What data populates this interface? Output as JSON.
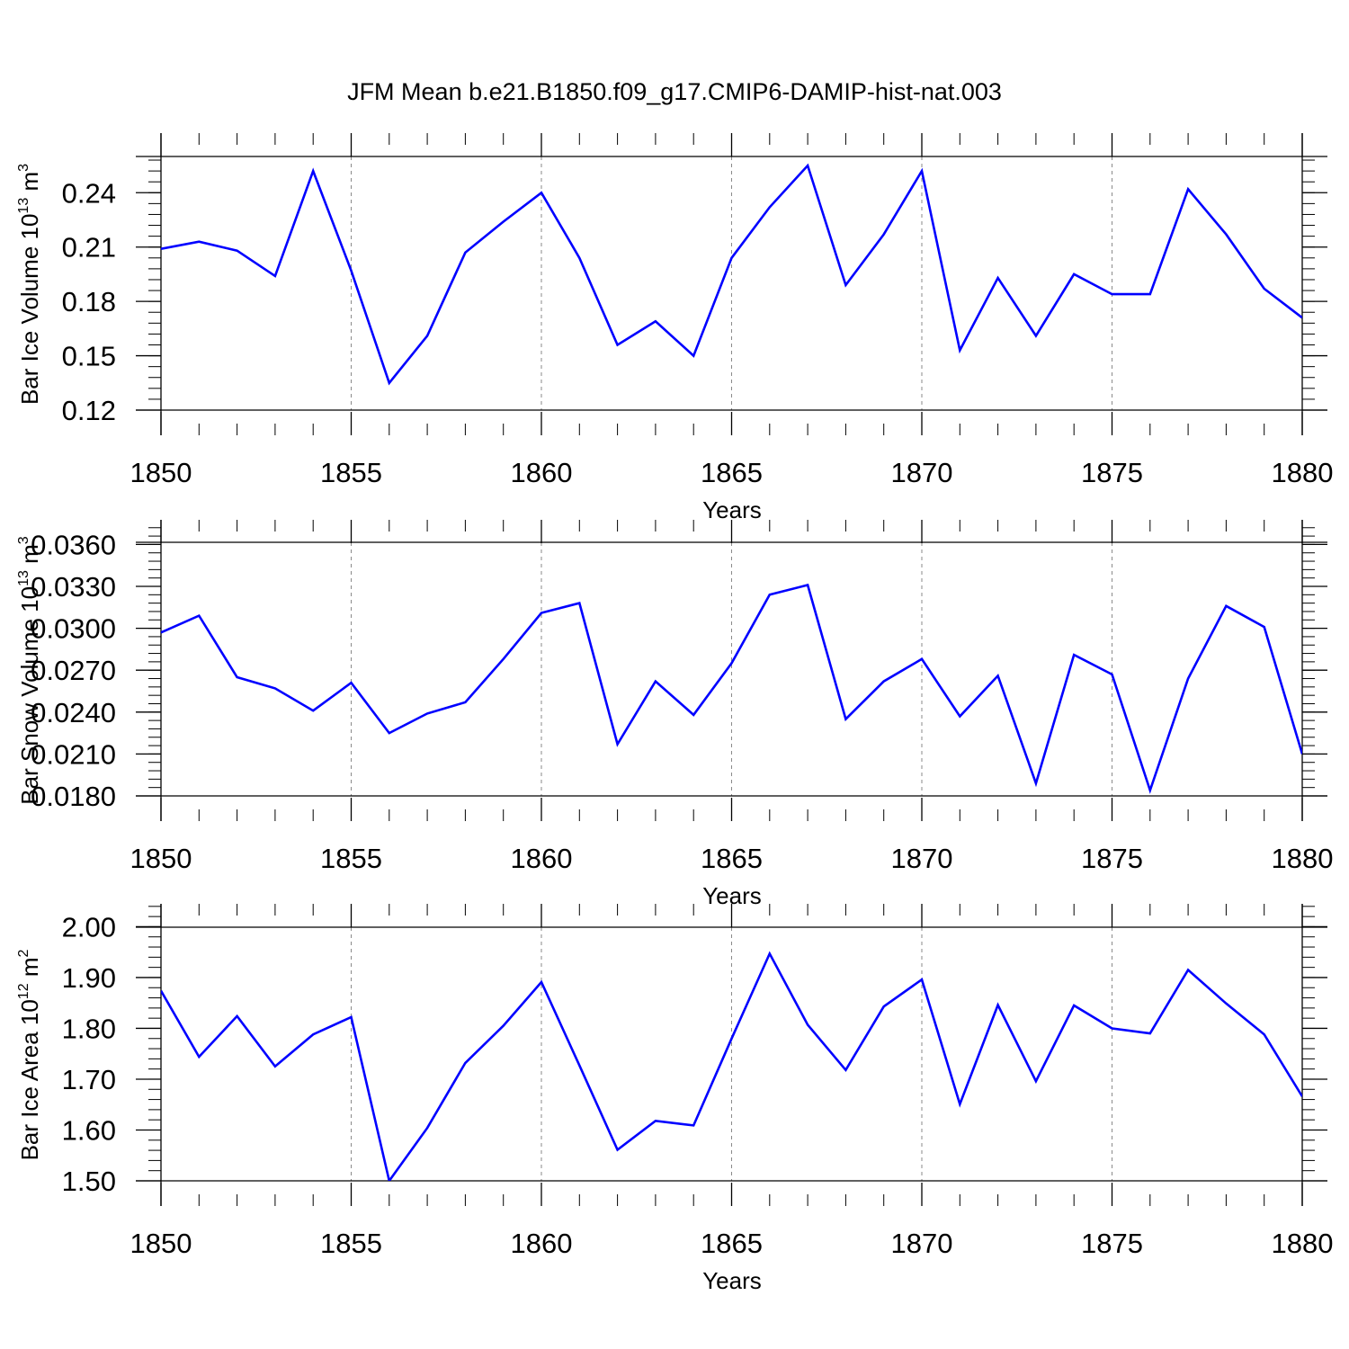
{
  "title": "JFM Mean b.e21.B1850.f09_g17.CMIP6-DAMIP-hist-nat.003",
  "colors": {
    "series": "#0000ff",
    "grid": "#8a8a8a",
    "axes": "#000000"
  },
  "chart_data": [
    {
      "type": "line",
      "xlabel": "Years",
      "ylabel": "Bar Ice Volume 10",
      "ylabel_exp": "13",
      "ylabel_unit": " m",
      "ylabel_unit_exp": "3",
      "xlim": [
        1850,
        1880
      ],
      "ylim": [
        0.12,
        0.26
      ],
      "y_ticks": [
        0.12,
        0.15,
        0.18,
        0.21,
        0.24
      ],
      "y_tick_labels": [
        "0.12",
        "0.15",
        "0.18",
        "0.21",
        "0.24"
      ],
      "x_ticks": [
        1850,
        1855,
        1860,
        1865,
        1870,
        1875,
        1880
      ],
      "x_tick_labels": [
        "1850",
        "1855",
        "1860",
        "1865",
        "1870",
        "1875",
        "1880"
      ],
      "grid": "vertical dashed",
      "x": [
        1850,
        1851,
        1852,
        1853,
        1854,
        1855,
        1856,
        1857,
        1858,
        1859,
        1860,
        1861,
        1862,
        1863,
        1864,
        1865,
        1866,
        1867,
        1868,
        1869,
        1870,
        1871,
        1872,
        1873,
        1874,
        1875,
        1876,
        1877,
        1878,
        1879,
        1880
      ],
      "series": [
        {
          "values": [
            0.209,
            0.213,
            0.208,
            0.194,
            0.252,
            0.197,
            0.135,
            0.161,
            0.207,
            0.224,
            0.24,
            0.204,
            0.156,
            0.169,
            0.15,
            0.204,
            0.232,
            0.255,
            0.189,
            0.217,
            0.252,
            0.153,
            0.193,
            0.161,
            0.195,
            0.184,
            0.184,
            0.242,
            0.217,
            0.187,
            0.171
          ]
        }
      ]
    },
    {
      "type": "line",
      "xlabel": "Years",
      "ylabel": "Bar Snow Volume 10",
      "ylabel_exp": "13",
      "ylabel_unit": " m",
      "ylabel_unit_exp": "3",
      "xlim": [
        1850,
        1880
      ],
      "ylim": [
        0.018,
        0.0377
      ],
      "y_ticks": [
        0.018,
        0.021,
        0.024,
        0.027,
        0.03,
        0.033,
        0.036
      ],
      "y_tick_labels": [
        "0.0180",
        "0.0210",
        "0.0240",
        "0.0270",
        "0.0300",
        "0.0330",
        "0.0360"
      ],
      "x_ticks": [
        1850,
        1855,
        1860,
        1865,
        1870,
        1875,
        1880
      ],
      "x_tick_labels": [
        "1850",
        "1855",
        "1860",
        "1865",
        "1870",
        "1875",
        "1880"
      ],
      "grid": "vertical dashed",
      "x": [
        1850,
        1851,
        1852,
        1853,
        1854,
        1855,
        1856,
        1857,
        1858,
        1859,
        1860,
        1861,
        1862,
        1863,
        1864,
        1865,
        1866,
        1867,
        1868,
        1869,
        1870,
        1871,
        1872,
        1873,
        1874,
        1875,
        1876,
        1877,
        1878,
        1879,
        1880
      ],
      "series": [
        {
          "values": [
            0.0297,
            0.0309,
            0.0265,
            0.0257,
            0.0241,
            0.0261,
            0.0225,
            0.0239,
            0.0247,
            0.0278,
            0.0311,
            0.0318,
            0.0217,
            0.0262,
            0.0238,
            0.0275,
            0.0324,
            0.0331,
            0.0235,
            0.0262,
            0.0278,
            0.0237,
            0.0266,
            0.0189,
            0.0281,
            0.0267,
            0.0184,
            0.0264,
            0.0316,
            0.0301,
            0.021
          ]
        }
      ]
    },
    {
      "type": "line",
      "xlabel": "Years",
      "ylabel": "Bar Ice Area 10",
      "ylabel_exp": "12",
      "ylabel_unit": " m",
      "ylabel_unit_exp": "2",
      "xlim": [
        1850,
        1880
      ],
      "ylim": [
        1.5,
        2.045
      ],
      "y_ticks": [
        1.5,
        1.6,
        1.7,
        1.8,
        1.9,
        2.0
      ],
      "y_tick_labels": [
        "1.50",
        "1.60",
        "1.70",
        "1.80",
        "1.90",
        "2.00"
      ],
      "x_ticks": [
        1850,
        1855,
        1860,
        1865,
        1870,
        1875,
        1880
      ],
      "x_tick_labels": [
        "1850",
        "1855",
        "1860",
        "1865",
        "1870",
        "1875",
        "1880"
      ],
      "grid": "vertical dashed",
      "x": [
        1850,
        1851,
        1852,
        1853,
        1854,
        1855,
        1856,
        1857,
        1858,
        1859,
        1860,
        1861,
        1862,
        1863,
        1864,
        1865,
        1866,
        1867,
        1868,
        1869,
        1870,
        1871,
        1872,
        1873,
        1874,
        1875,
        1876,
        1877,
        1878,
        1879,
        1880
      ],
      "series": [
        {
          "values": [
            1.874,
            1.744,
            1.824,
            1.725,
            1.788,
            1.822,
            1.5,
            1.604,
            1.732,
            1.805,
            1.891,
            1.727,
            1.561,
            1.618,
            1.609,
            1.78,
            1.947,
            1.807,
            1.718,
            1.843,
            1.896,
            1.651,
            1.846,
            1.696,
            1.845,
            1.8,
            1.79,
            1.915,
            1.849,
            1.788,
            1.666
          ]
        }
      ]
    }
  ]
}
